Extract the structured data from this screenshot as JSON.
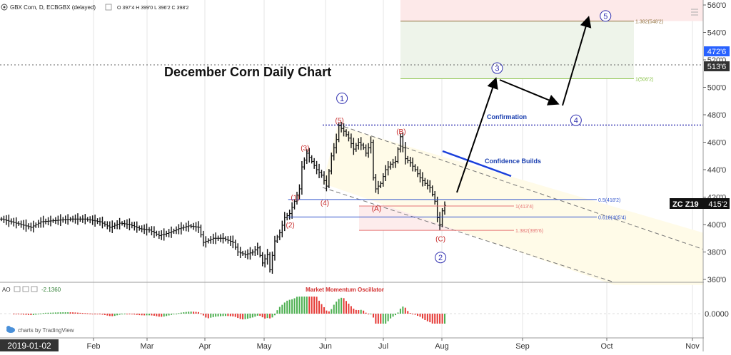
{
  "header": {
    "symbol_line": "GBX Corn, D, ECBGBX (delayed)",
    "ohlc": "O 397'4 H 399'0 L 396'2 C 398'2"
  },
  "title": "December Corn Daily Chart",
  "colors": {
    "bar": "#111111",
    "wave_red": "#c62828",
    "wave_blue": "#3030b0",
    "fib_blue": "#3355cc",
    "fib_red": "#e57373",
    "fib_green": "#8bc34a",
    "fib_brown": "#8d6e3a",
    "osc_green": "#4caf50",
    "osc_red": "#e53935"
  },
  "chart_data": {
    "type": "line",
    "title": "December Corn Daily Chart",
    "y_ticks": [
      "360'0",
      "380'0",
      "400'0",
      "420'0",
      "440'0",
      "460'0",
      "480'0",
      "500'0",
      "520'0",
      "540'0",
      "560'0"
    ],
    "x_ticks": [
      "Feb",
      "Mar",
      "Apr",
      "May",
      "Jun",
      "Jul",
      "Aug",
      "Sep",
      "Oct",
      "Nov"
    ],
    "x_start_label": "2019-01-02",
    "ylim": [
      356,
      562
    ],
    "price_path": [
      [
        0,
        404
      ],
      [
        6,
        401
      ],
      [
        12,
        398
      ],
      [
        16,
        402
      ],
      [
        22,
        403
      ],
      [
        28,
        404
      ],
      [
        34,
        404
      ],
      [
        40,
        402
      ],
      [
        44,
        398
      ],
      [
        48,
        401
      ],
      [
        52,
        400
      ],
      [
        56,
        397
      ],
      [
        60,
        396
      ],
      [
        64,
        392
      ],
      [
        68,
        394
      ],
      [
        72,
        397
      ],
      [
        76,
        399
      ],
      [
        80,
        398
      ],
      [
        82,
        387
      ],
      [
        86,
        390
      ],
      [
        90,
        390
      ],
      [
        94,
        387
      ],
      [
        96,
        380
      ],
      [
        99,
        378
      ],
      [
        102,
        380
      ],
      [
        104,
        383
      ],
      [
        106,
        372
      ],
      [
        108,
        378
      ],
      [
        109,
        367
      ],
      [
        111,
        388
      ],
      [
        113,
        394
      ],
      [
        115,
        405
      ],
      [
        117,
        408
      ],
      [
        119,
        417
      ],
      [
        121,
        426
      ],
      [
        122,
        442
      ],
      [
        124,
        452
      ],
      [
        126,
        446
      ],
      [
        128,
        440
      ],
      [
        130,
        436
      ],
      [
        132,
        428
      ],
      [
        134,
        450
      ],
      [
        136,
        462
      ],
      [
        137,
        472
      ],
      [
        139,
        468
      ],
      [
        141,
        463
      ],
      [
        143,
        455
      ],
      [
        145,
        460
      ],
      [
        147,
        456
      ],
      [
        148,
        452
      ],
      [
        150,
        460
      ],
      [
        151,
        434
      ],
      [
        152,
        426
      ],
      [
        154,
        430
      ],
      [
        156,
        440
      ],
      [
        158,
        444
      ],
      [
        160,
        446
      ],
      [
        162,
        464
      ],
      [
        164,
        448
      ],
      [
        166,
        445
      ],
      [
        168,
        440
      ],
      [
        170,
        434
      ],
      [
        172,
        430
      ],
      [
        174,
        427
      ],
      [
        176,
        417
      ],
      [
        177,
        405
      ],
      [
        178,
        400
      ],
      [
        179,
        410
      ],
      [
        180,
        414
      ]
    ],
    "current_price": "415'2",
    "current_label": "ZC Z19",
    "axis_badges": [
      "513'6",
      "472'6"
    ],
    "waves": [
      {
        "label": "(1)",
        "x": 119,
        "y": 420,
        "color": "red"
      },
      {
        "label": "(2)",
        "x": 117,
        "y": 400,
        "color": "red"
      },
      {
        "label": "(3)",
        "x": 123,
        "y": 456,
        "color": "red"
      },
      {
        "label": "(4)",
        "x": 131,
        "y": 416,
        "color": "red"
      },
      {
        "label": "(5)",
        "x": 137,
        "y": 476,
        "color": "red"
      },
      {
        "label": "(A)",
        "x": 152,
        "y": 412,
        "color": "red"
      },
      {
        "label": "(B)",
        "x": 162,
        "y": 468,
        "color": "red"
      },
      {
        "label": "(C)",
        "x": 178,
        "y": 390,
        "color": "red"
      },
      {
        "label": "1",
        "x": 138,
        "y": 492,
        "color": "blue"
      },
      {
        "label": "2",
        "x": 178,
        "y": 376,
        "color": "blue"
      },
      {
        "label": "3",
        "x": 201,
        "y": 514,
        "color": "blue"
      },
      {
        "label": "4",
        "x": 233,
        "y": 476,
        "color": "blue"
      },
      {
        "label": "5",
        "x": 245,
        "y": 552,
        "color": "blue"
      }
    ],
    "fib_levels": [
      {
        "label": "0.5(418'2)",
        "value": 418.25,
        "color": "blue"
      },
      {
        "label": "0.618(405'4)",
        "value": 405.5,
        "color": "blue"
      },
      {
        "label": "1(413'4)",
        "value": 413.5,
        "color": "red"
      },
      {
        "label": "1.382(395'6)",
        "value": 395.75,
        "color": "red"
      },
      {
        "label": "1(506'2)",
        "value": 506.25,
        "color": "green"
      },
      {
        "label": "1.382(548'2)",
        "value": 548.25,
        "color": "brown"
      }
    ],
    "annotations": {
      "confirmation": "Confirmation",
      "confidence": "Confidence Builds"
    },
    "oscillator": {
      "name": "AO",
      "value_label": "-2.1360",
      "title": "Market Momentum Oscillator",
      "zero_label": "0.0000"
    }
  },
  "watermark": "charts by TradingView"
}
